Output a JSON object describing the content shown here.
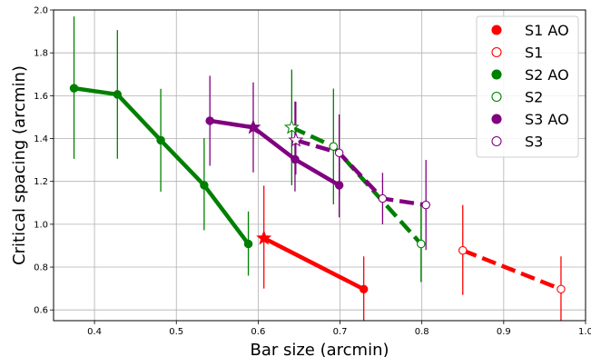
{
  "chart_data": {
    "type": "line",
    "title": "",
    "xlabel": "Bar size (arcmin)",
    "ylabel": "Critical spacing (arcmin)",
    "xlim": [
      0.35,
      1.0
    ],
    "ylim": [
      0.55,
      2.0
    ],
    "x_ticks": [
      "0.4",
      "0.5",
      "0.6",
      "0.7",
      "0.8",
      "0.9",
      "1.0"
    ],
    "y_ticks": [
      "0.6",
      "0.8",
      "1.0",
      "1.2",
      "1.4",
      "1.6",
      "1.8",
      "2.0"
    ],
    "grid": true,
    "legend_position": "top-right",
    "colors": {
      "S1": "#ff0000",
      "S2": "#008000",
      "S3": "#800080"
    },
    "series": [
      {
        "name": "S1 AO",
        "subject": "S1",
        "condition": "AO",
        "color": "#ff0000",
        "x": [
          0.607,
          0.729
        ],
        "y": [
          0.935,
          0.697
        ],
        "err_low": [
          0.235,
          0.147
        ],
        "err_high": [
          0.245,
          0.153
        ],
        "dashed": false,
        "filled": true,
        "star_index": 0
      },
      {
        "name": "S1",
        "subject": "S1",
        "condition": "no AO",
        "color": "#ff0000",
        "x": [
          0.85,
          0.97
        ],
        "y": [
          0.878,
          0.697
        ],
        "err_low": [
          0.208,
          0.147
        ],
        "err_high": [
          0.212,
          0.153
        ],
        "dashed": true,
        "filled": false,
        "star_index": null
      },
      {
        "name": "S2 AO",
        "subject": "S2",
        "condition": "AO",
        "color": "#008000",
        "x": [
          0.375,
          0.428,
          0.481,
          0.534,
          0.588
        ],
        "y": [
          1.635,
          1.606,
          1.392,
          1.182,
          0.908
        ],
        "err_low": [
          0.33,
          0.3,
          0.24,
          0.21,
          0.148
        ],
        "err_high": [
          0.335,
          0.3,
          0.24,
          0.22,
          0.152
        ],
        "dashed": false,
        "filled": true,
        "star_index": null
      },
      {
        "name": "S2",
        "subject": "S2",
        "condition": "no AO",
        "color": "#008000",
        "x": [
          0.641,
          0.692,
          0.799
        ],
        "y": [
          1.452,
          1.363,
          0.908
        ],
        "err_low": [
          0.27,
          0.27,
          0.178
        ],
        "err_high": [
          0.27,
          0.27,
          0.182
        ],
        "dashed": true,
        "filled": false,
        "star_index": 0
      },
      {
        "name": "S3 AO",
        "subject": "S3",
        "condition": "AO",
        "color": "#800080",
        "x": [
          0.541,
          0.594,
          0.645,
          0.699
        ],
        "y": [
          1.483,
          1.452,
          1.303,
          1.182
        ],
        "err_low": [
          0.21,
          0.21,
          0.15,
          0.15
        ],
        "err_high": [
          0.21,
          0.21,
          0.27,
          0.13
        ],
        "dashed": false,
        "filled": true,
        "star_index": 1
      },
      {
        "name": "S3",
        "subject": "S3",
        "condition": "no AO",
        "color": "#800080",
        "x": [
          0.646,
          0.699,
          0.752,
          0.805
        ],
        "y": [
          1.392,
          1.333,
          1.12,
          1.09
        ],
        "err_low": [
          0.16,
          0.2,
          0.12,
          0.21
        ],
        "err_high": [
          0.18,
          0.18,
          0.12,
          0.21
        ],
        "dashed": true,
        "filled": false,
        "star_index": 0
      }
    ]
  }
}
